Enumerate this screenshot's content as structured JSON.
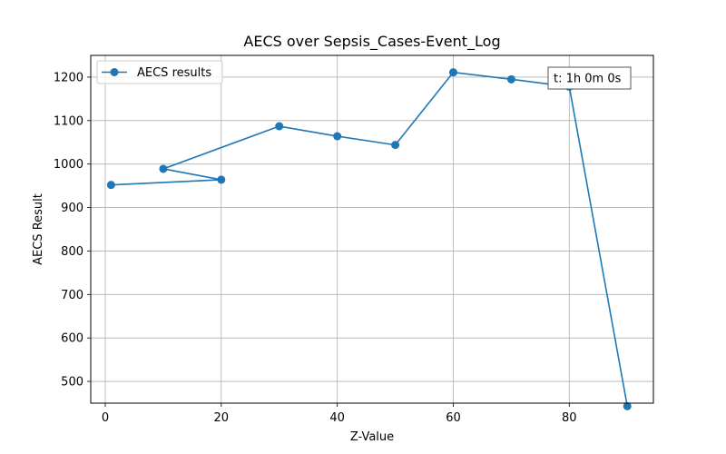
{
  "chart_data": {
    "type": "line",
    "title": "AECS over Sepsis_Cases-Event_Log",
    "xlabel": "Z-Value",
    "ylabel": "AECS Result",
    "xlim": [
      -2.5,
      94.5
    ],
    "ylim": [
      450,
      1250
    ],
    "xticks": [
      0,
      20,
      40,
      60,
      80
    ],
    "yticks": [
      500,
      600,
      700,
      800,
      900,
      1000,
      1100,
      1200
    ],
    "grid": true,
    "legend_position": "top-left",
    "color": "#1f77b4",
    "series": [
      {
        "name": "AECS results",
        "x": [
          1,
          20,
          10,
          30,
          40,
          50,
          60,
          70,
          80,
          90
        ],
        "y": [
          952,
          964,
          989,
          1087,
          1064,
          1044,
          1211,
          1195,
          1178,
          443
        ]
      }
    ],
    "annotation": {
      "text": "t: 1h 0m 0s",
      "position": "top-right"
    }
  }
}
